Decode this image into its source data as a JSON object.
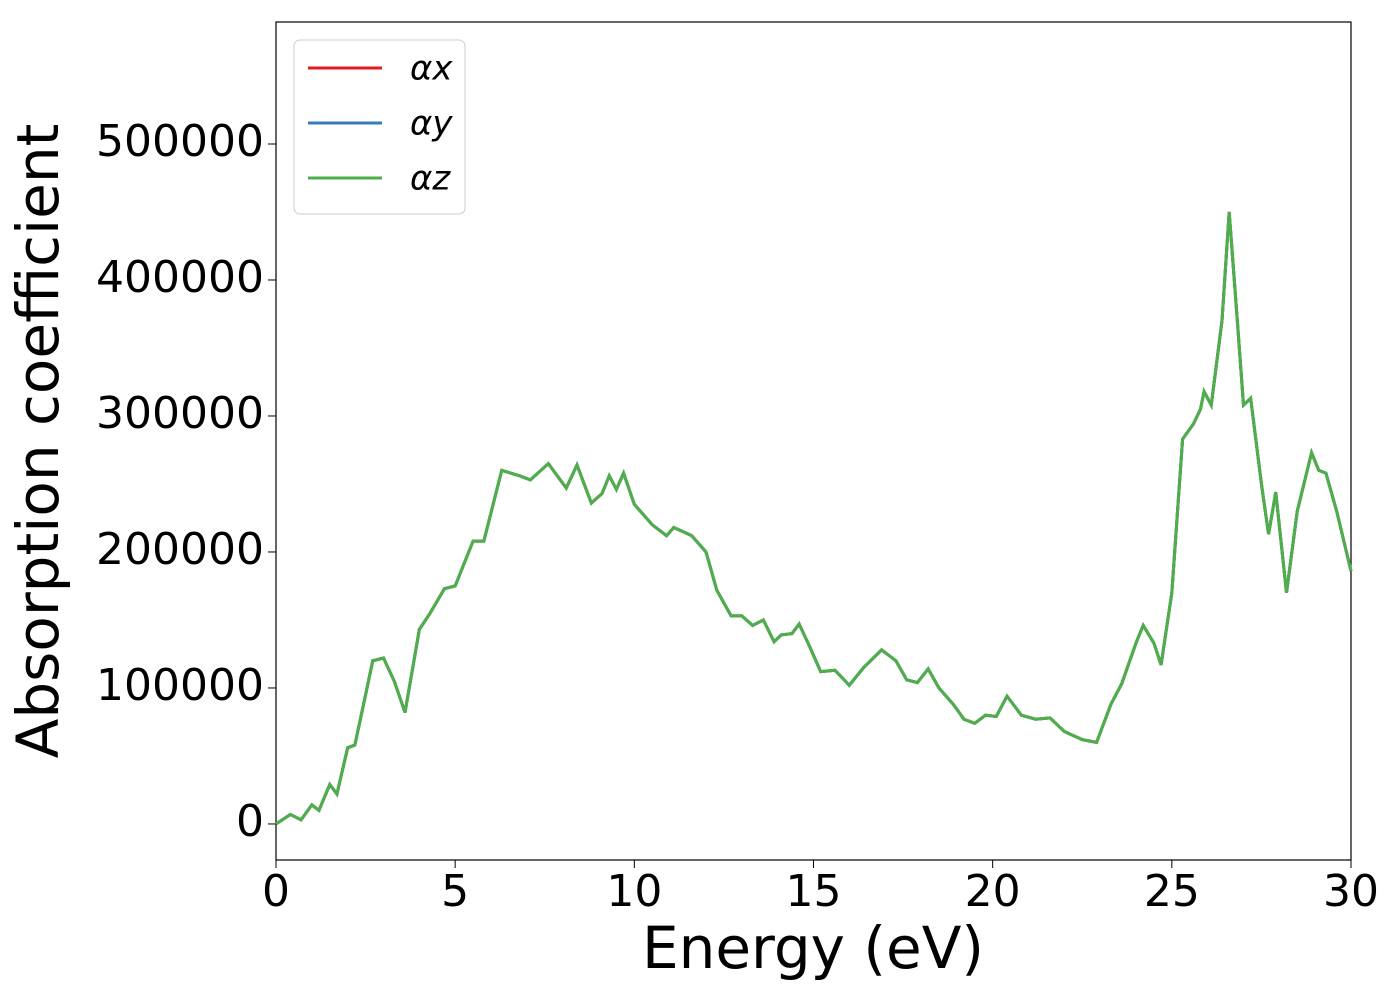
{
  "chart_data": {
    "type": "line",
    "xlabel": "Energy (eV)",
    "ylabel": "Absorption coefficient",
    "x": [
      0,
      0.4,
      0.7,
      1.0,
      1.2,
      1.5,
      1.7,
      2.0,
      2.2,
      2.5,
      2.7,
      3.0,
      3.3,
      3.6,
      4.0,
      4.3,
      4.7,
      5.0,
      5.5,
      5.8,
      6.3,
      6.8,
      7.1,
      7.6,
      8.1,
      8.4,
      8.8,
      9.1,
      9.3,
      9.5,
      9.7,
      10.0,
      10.5,
      10.9,
      11.1,
      11.6,
      12.0,
      12.3,
      12.7,
      13.0,
      13.3,
      13.6,
      13.9,
      14.1,
      14.4,
      14.6,
      14.9,
      15.2,
      15.6,
      16.0,
      16.4,
      16.9,
      17.3,
      17.6,
      17.9,
      18.2,
      18.5,
      18.9,
      19.2,
      19.5,
      19.8,
      20.1,
      20.4,
      20.8,
      21.2,
      21.6,
      22.0,
      22.5,
      22.9,
      23.3,
      23.6,
      24.0,
      24.2,
      24.5,
      24.7,
      25.0,
      25.3,
      25.6,
      25.8,
      25.9,
      26.1,
      26.4,
      26.6,
      26.8,
      27.0,
      27.2,
      27.5,
      27.7,
      27.9,
      28.2,
      28.5,
      28.9,
      29.1,
      29.3,
      29.6,
      30.0
    ],
    "series": [
      {
        "name": "αx",
        "color": "#e41a1c",
        "values": [
          0,
          7000,
          3000,
          14000,
          10000,
          29000,
          22000,
          56000,
          58000,
          95000,
          120000,
          122000,
          105000,
          82000,
          143000,
          155000,
          173000,
          175000,
          208000,
          208000,
          260000,
          256000,
          253000,
          265000,
          247000,
          264000,
          236000,
          243000,
          256000,
          246000,
          258000,
          235000,
          220000,
          212000,
          218000,
          212000,
          200000,
          172000,
          153000,
          153000,
          146000,
          150000,
          134000,
          139000,
          140000,
          147000,
          130000,
          112000,
          113000,
          102000,
          115000,
          128000,
          120000,
          106000,
          104000,
          114000,
          100000,
          88000,
          77000,
          74000,
          80000,
          79000,
          94000,
          80000,
          77000,
          78000,
          68000,
          62000,
          60000,
          88000,
          103000,
          133000,
          146000,
          133000,
          117000,
          170000,
          283000,
          294000,
          305000,
          318000,
          308000,
          370000,
          450000,
          380000,
          308000,
          313000,
          250000,
          213000,
          244000,
          170000,
          230000,
          273000,
          260000,
          258000,
          230000,
          186000
        ]
      },
      {
        "name": "αy",
        "color": "#377eb8",
        "values": [
          0,
          7000,
          3000,
          14000,
          10000,
          29000,
          22000,
          56000,
          58000,
          95000,
          120000,
          122000,
          105000,
          82000,
          143000,
          155000,
          173000,
          175000,
          208000,
          208000,
          260000,
          256000,
          253000,
          265000,
          247000,
          264000,
          236000,
          243000,
          256000,
          246000,
          258000,
          235000,
          220000,
          212000,
          218000,
          212000,
          200000,
          172000,
          153000,
          153000,
          146000,
          150000,
          134000,
          139000,
          140000,
          147000,
          130000,
          112000,
          113000,
          102000,
          115000,
          128000,
          120000,
          106000,
          104000,
          114000,
          100000,
          88000,
          77000,
          74000,
          80000,
          79000,
          94000,
          80000,
          77000,
          78000,
          68000,
          62000,
          60000,
          88000,
          103000,
          133000,
          146000,
          133000,
          117000,
          170000,
          283000,
          294000,
          305000,
          318000,
          308000,
          370000,
          450000,
          380000,
          308000,
          313000,
          250000,
          213000,
          244000,
          170000,
          230000,
          273000,
          260000,
          258000,
          230000,
          186000
        ]
      },
      {
        "name": "αz",
        "color": "#4daf4a",
        "values": [
          0,
          7000,
          3000,
          14000,
          10000,
          29000,
          22000,
          56000,
          58000,
          95000,
          120000,
          122000,
          105000,
          82000,
          143000,
          155000,
          173000,
          175000,
          208000,
          208000,
          260000,
          256000,
          253000,
          265000,
          247000,
          264000,
          236000,
          243000,
          256000,
          246000,
          258000,
          235000,
          220000,
          212000,
          218000,
          212000,
          200000,
          172000,
          153000,
          153000,
          146000,
          150000,
          134000,
          139000,
          140000,
          147000,
          130000,
          112000,
          113000,
          102000,
          115000,
          128000,
          120000,
          106000,
          104000,
          114000,
          100000,
          88000,
          77000,
          74000,
          80000,
          79000,
          94000,
          80000,
          77000,
          78000,
          68000,
          62000,
          60000,
          88000,
          103000,
          133000,
          146000,
          133000,
          117000,
          170000,
          283000,
          294000,
          305000,
          318000,
          308000,
          370000,
          450000,
          380000,
          308000,
          313000,
          250000,
          213000,
          244000,
          170000,
          230000,
          273000,
          260000,
          258000,
          230000,
          186000
        ]
      }
    ],
    "xlim": [
      0,
      30
    ],
    "xticks": [
      0,
      5,
      10,
      15,
      20,
      25,
      30
    ],
    "ylim": [
      -26500,
      589700
    ],
    "yticks": [
      0,
      100000,
      200000,
      300000,
      400000,
      500000
    ],
    "legend": "upper left"
  }
}
